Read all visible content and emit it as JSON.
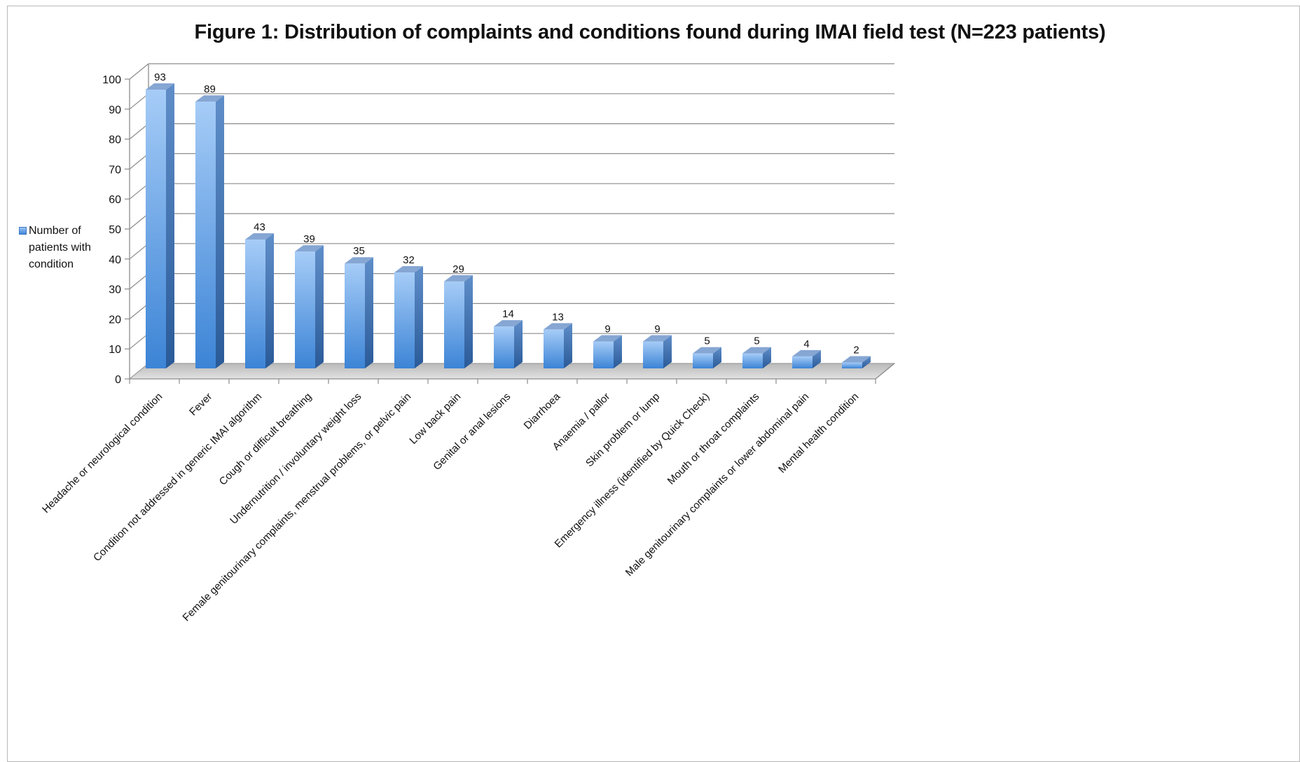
{
  "chart_data": {
    "type": "bar",
    "title": "Figure 1: Distribution of complaints and conditions found during IMAI field test (N=223 patients)",
    "categories": [
      "Headache or neurological condition",
      "Fever",
      "Condition not addressed in generic IMAI algorithm",
      "Cough or difficult breathing",
      "Undernutrition / involuntary weight loss",
      "Female genitourinary complaints, menstrual problems, or pelvic pain",
      "Low back pain",
      "Genital or anal lesions",
      "Diarrhoea",
      "Anaemia / pallor",
      "Skin problem or lump",
      "Emergency illness (identified by Quick Check)",
      "Mouth or throat complaints",
      "Male genitourinary complaints or lower abdominal pain",
      "Mental health condition"
    ],
    "series": [
      {
        "name": "Number of patients with condition",
        "values": [
          93,
          89,
          43,
          39,
          35,
          32,
          29,
          14,
          13,
          9,
          9,
          5,
          5,
          4,
          2
        ]
      }
    ],
    "y_ticks": [
      "0",
      "10",
      "20",
      "30",
      "40",
      "50",
      "60",
      "70",
      "80",
      "90",
      "100"
    ],
    "ylim": [
      0,
      100
    ],
    "grid": true,
    "legend_position": "left",
    "colors": {
      "bar_top_light": "#a6ccf7",
      "bar_bottom_dark": "#3c84d6",
      "bar_side": "#2e5f9e",
      "bar_cap": "#7f9fcc",
      "grid": "#8c8c8c",
      "floor": "#cfcfcf"
    }
  }
}
